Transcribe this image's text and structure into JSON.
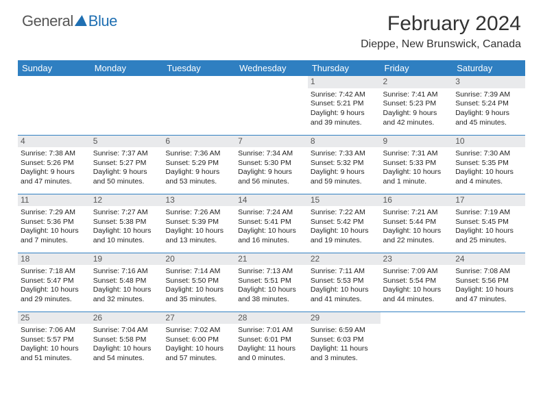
{
  "brand": {
    "part1": "General",
    "part2": "Blue"
  },
  "title": "February 2024",
  "location": "Dieppe, New Brunswick, Canada",
  "colors": {
    "header_bg": "#2f7fc1",
    "header_text": "#ffffff",
    "border": "#2f7fc1",
    "daynum_bg": "#e9eaec",
    "daynum_text": "#565656",
    "brand_gray": "#555555",
    "brand_blue": "#1f6fb2",
    "page_bg": "#ffffff"
  },
  "days_of_week": [
    "Sunday",
    "Monday",
    "Tuesday",
    "Wednesday",
    "Thursday",
    "Friday",
    "Saturday"
  ],
  "weeks": [
    [
      {
        "num": "",
        "lines": [
          "",
          "",
          "",
          ""
        ]
      },
      {
        "num": "",
        "lines": [
          "",
          "",
          "",
          ""
        ]
      },
      {
        "num": "",
        "lines": [
          "",
          "",
          "",
          ""
        ]
      },
      {
        "num": "",
        "lines": [
          "",
          "",
          "",
          ""
        ]
      },
      {
        "num": "1",
        "lines": [
          "Sunrise: 7:42 AM",
          "Sunset: 5:21 PM",
          "Daylight: 9 hours",
          "and 39 minutes."
        ]
      },
      {
        "num": "2",
        "lines": [
          "Sunrise: 7:41 AM",
          "Sunset: 5:23 PM",
          "Daylight: 9 hours",
          "and 42 minutes."
        ]
      },
      {
        "num": "3",
        "lines": [
          "Sunrise: 7:39 AM",
          "Sunset: 5:24 PM",
          "Daylight: 9 hours",
          "and 45 minutes."
        ]
      }
    ],
    [
      {
        "num": "4",
        "lines": [
          "Sunrise: 7:38 AM",
          "Sunset: 5:26 PM",
          "Daylight: 9 hours",
          "and 47 minutes."
        ]
      },
      {
        "num": "5",
        "lines": [
          "Sunrise: 7:37 AM",
          "Sunset: 5:27 PM",
          "Daylight: 9 hours",
          "and 50 minutes."
        ]
      },
      {
        "num": "6",
        "lines": [
          "Sunrise: 7:36 AM",
          "Sunset: 5:29 PM",
          "Daylight: 9 hours",
          "and 53 minutes."
        ]
      },
      {
        "num": "7",
        "lines": [
          "Sunrise: 7:34 AM",
          "Sunset: 5:30 PM",
          "Daylight: 9 hours",
          "and 56 minutes."
        ]
      },
      {
        "num": "8",
        "lines": [
          "Sunrise: 7:33 AM",
          "Sunset: 5:32 PM",
          "Daylight: 9 hours",
          "and 59 minutes."
        ]
      },
      {
        "num": "9",
        "lines": [
          "Sunrise: 7:31 AM",
          "Sunset: 5:33 PM",
          "Daylight: 10 hours",
          "and 1 minute."
        ]
      },
      {
        "num": "10",
        "lines": [
          "Sunrise: 7:30 AM",
          "Sunset: 5:35 PM",
          "Daylight: 10 hours",
          "and 4 minutes."
        ]
      }
    ],
    [
      {
        "num": "11",
        "lines": [
          "Sunrise: 7:29 AM",
          "Sunset: 5:36 PM",
          "Daylight: 10 hours",
          "and 7 minutes."
        ]
      },
      {
        "num": "12",
        "lines": [
          "Sunrise: 7:27 AM",
          "Sunset: 5:38 PM",
          "Daylight: 10 hours",
          "and 10 minutes."
        ]
      },
      {
        "num": "13",
        "lines": [
          "Sunrise: 7:26 AM",
          "Sunset: 5:39 PM",
          "Daylight: 10 hours",
          "and 13 minutes."
        ]
      },
      {
        "num": "14",
        "lines": [
          "Sunrise: 7:24 AM",
          "Sunset: 5:41 PM",
          "Daylight: 10 hours",
          "and 16 minutes."
        ]
      },
      {
        "num": "15",
        "lines": [
          "Sunrise: 7:22 AM",
          "Sunset: 5:42 PM",
          "Daylight: 10 hours",
          "and 19 minutes."
        ]
      },
      {
        "num": "16",
        "lines": [
          "Sunrise: 7:21 AM",
          "Sunset: 5:44 PM",
          "Daylight: 10 hours",
          "and 22 minutes."
        ]
      },
      {
        "num": "17",
        "lines": [
          "Sunrise: 7:19 AM",
          "Sunset: 5:45 PM",
          "Daylight: 10 hours",
          "and 25 minutes."
        ]
      }
    ],
    [
      {
        "num": "18",
        "lines": [
          "Sunrise: 7:18 AM",
          "Sunset: 5:47 PM",
          "Daylight: 10 hours",
          "and 29 minutes."
        ]
      },
      {
        "num": "19",
        "lines": [
          "Sunrise: 7:16 AM",
          "Sunset: 5:48 PM",
          "Daylight: 10 hours",
          "and 32 minutes."
        ]
      },
      {
        "num": "20",
        "lines": [
          "Sunrise: 7:14 AM",
          "Sunset: 5:50 PM",
          "Daylight: 10 hours",
          "and 35 minutes."
        ]
      },
      {
        "num": "21",
        "lines": [
          "Sunrise: 7:13 AM",
          "Sunset: 5:51 PM",
          "Daylight: 10 hours",
          "and 38 minutes."
        ]
      },
      {
        "num": "22",
        "lines": [
          "Sunrise: 7:11 AM",
          "Sunset: 5:53 PM",
          "Daylight: 10 hours",
          "and 41 minutes."
        ]
      },
      {
        "num": "23",
        "lines": [
          "Sunrise: 7:09 AM",
          "Sunset: 5:54 PM",
          "Daylight: 10 hours",
          "and 44 minutes."
        ]
      },
      {
        "num": "24",
        "lines": [
          "Sunrise: 7:08 AM",
          "Sunset: 5:56 PM",
          "Daylight: 10 hours",
          "and 47 minutes."
        ]
      }
    ],
    [
      {
        "num": "25",
        "lines": [
          "Sunrise: 7:06 AM",
          "Sunset: 5:57 PM",
          "Daylight: 10 hours",
          "and 51 minutes."
        ]
      },
      {
        "num": "26",
        "lines": [
          "Sunrise: 7:04 AM",
          "Sunset: 5:58 PM",
          "Daylight: 10 hours",
          "and 54 minutes."
        ]
      },
      {
        "num": "27",
        "lines": [
          "Sunrise: 7:02 AM",
          "Sunset: 6:00 PM",
          "Daylight: 10 hours",
          "and 57 minutes."
        ]
      },
      {
        "num": "28",
        "lines": [
          "Sunrise: 7:01 AM",
          "Sunset: 6:01 PM",
          "Daylight: 11 hours",
          "and 0 minutes."
        ]
      },
      {
        "num": "29",
        "lines": [
          "Sunrise: 6:59 AM",
          "Sunset: 6:03 PM",
          "Daylight: 11 hours",
          "and 3 minutes."
        ]
      },
      {
        "num": "",
        "lines": [
          "",
          "",
          "",
          ""
        ]
      },
      {
        "num": "",
        "lines": [
          "",
          "",
          "",
          ""
        ]
      }
    ]
  ]
}
